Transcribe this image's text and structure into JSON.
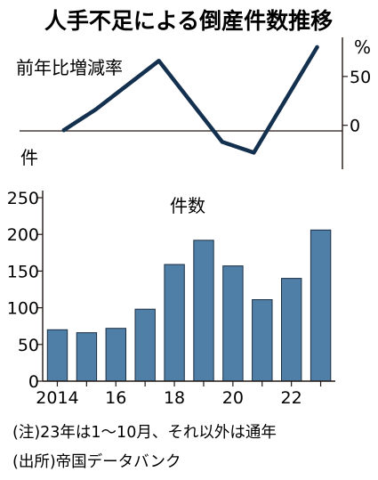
{
  "title": "人手不足による倒産件数推移",
  "notes": [
    "(注)23年は1〜10月、それ以外は通年",
    "(出所)帝国データバンク"
  ],
  "colors": {
    "bar": "#4f7fa6",
    "bar_stroke": "#1b2f44",
    "line": "#14304f",
    "axis": "#231815"
  },
  "chart_data": [
    {
      "type": "line",
      "title": "前年比増減率",
      "ylabel": "%",
      "x": [
        2015,
        2016,
        2018,
        2020,
        2021,
        2023
      ],
      "values": [
        -5,
        16,
        66,
        -17,
        -28,
        80
      ],
      "yticks": [
        0,
        50
      ],
      "ylim": [
        -45,
        90
      ],
      "xlim": [
        2013.6,
        2023.8
      ]
    },
    {
      "type": "bar",
      "title": "件数",
      "ylabel": "件",
      "categories": [
        "2014",
        "2015",
        "2016",
        "2017",
        "2018",
        "2019",
        "2020",
        "2021",
        "2022",
        "2023"
      ],
      "values": [
        70,
        66,
        72,
        98,
        159,
        192,
        157,
        111,
        140,
        206
      ],
      "xtick_labels": [
        "2014",
        "",
        "16",
        "",
        "18",
        "",
        "20",
        "",
        "22",
        ""
      ],
      "yticks": [
        0,
        50,
        100,
        150,
        200,
        250
      ],
      "ylim": [
        0,
        250
      ]
    }
  ]
}
